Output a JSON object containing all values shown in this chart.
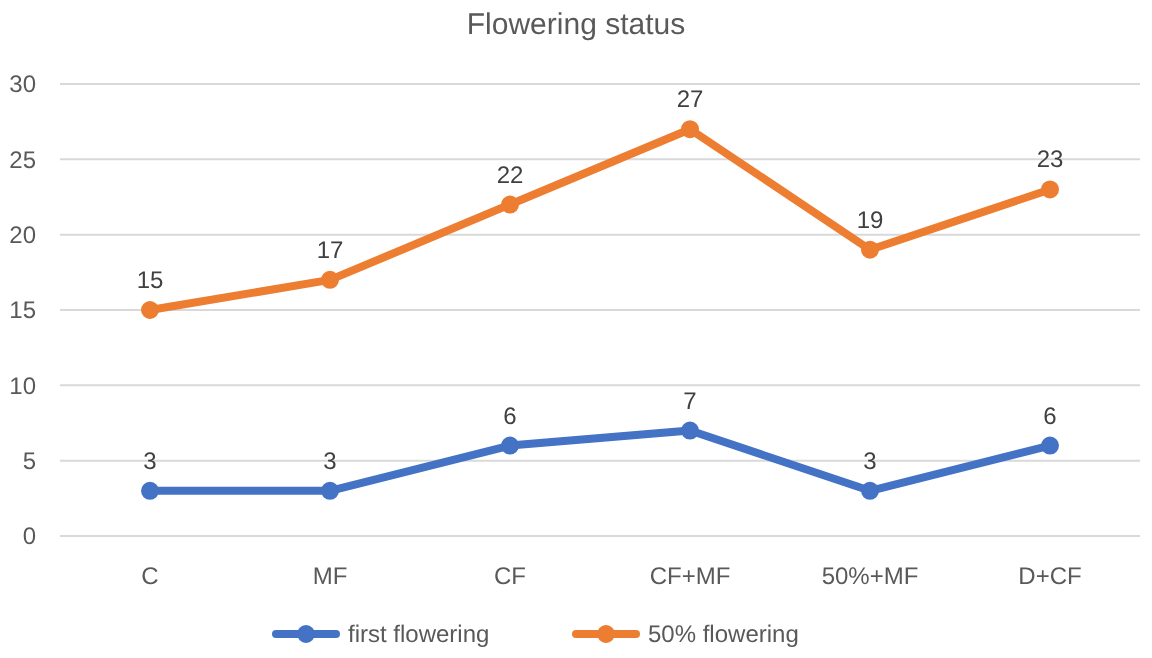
{
  "chart_data": {
    "type": "line",
    "title": "Flowering status",
    "categories": [
      "C",
      "MF",
      "CF",
      "CF+MF",
      "50%+MF",
      "D+CF"
    ],
    "series": [
      {
        "name": "first flowering",
        "color": "#4472c4",
        "values": [
          3,
          3,
          6,
          7,
          3,
          6
        ]
      },
      {
        "name": "50% flowering",
        "color": "#ed7d31",
        "values": [
          15,
          17,
          22,
          27,
          19,
          23
        ]
      }
    ],
    "ylim": [
      0,
      30
    ],
    "yticks": [
      0,
      5,
      10,
      15,
      20,
      25,
      30
    ],
    "grid": "y",
    "legend": "bottom",
    "marker": "circle",
    "line_style": "solid",
    "data_labels": true
  }
}
